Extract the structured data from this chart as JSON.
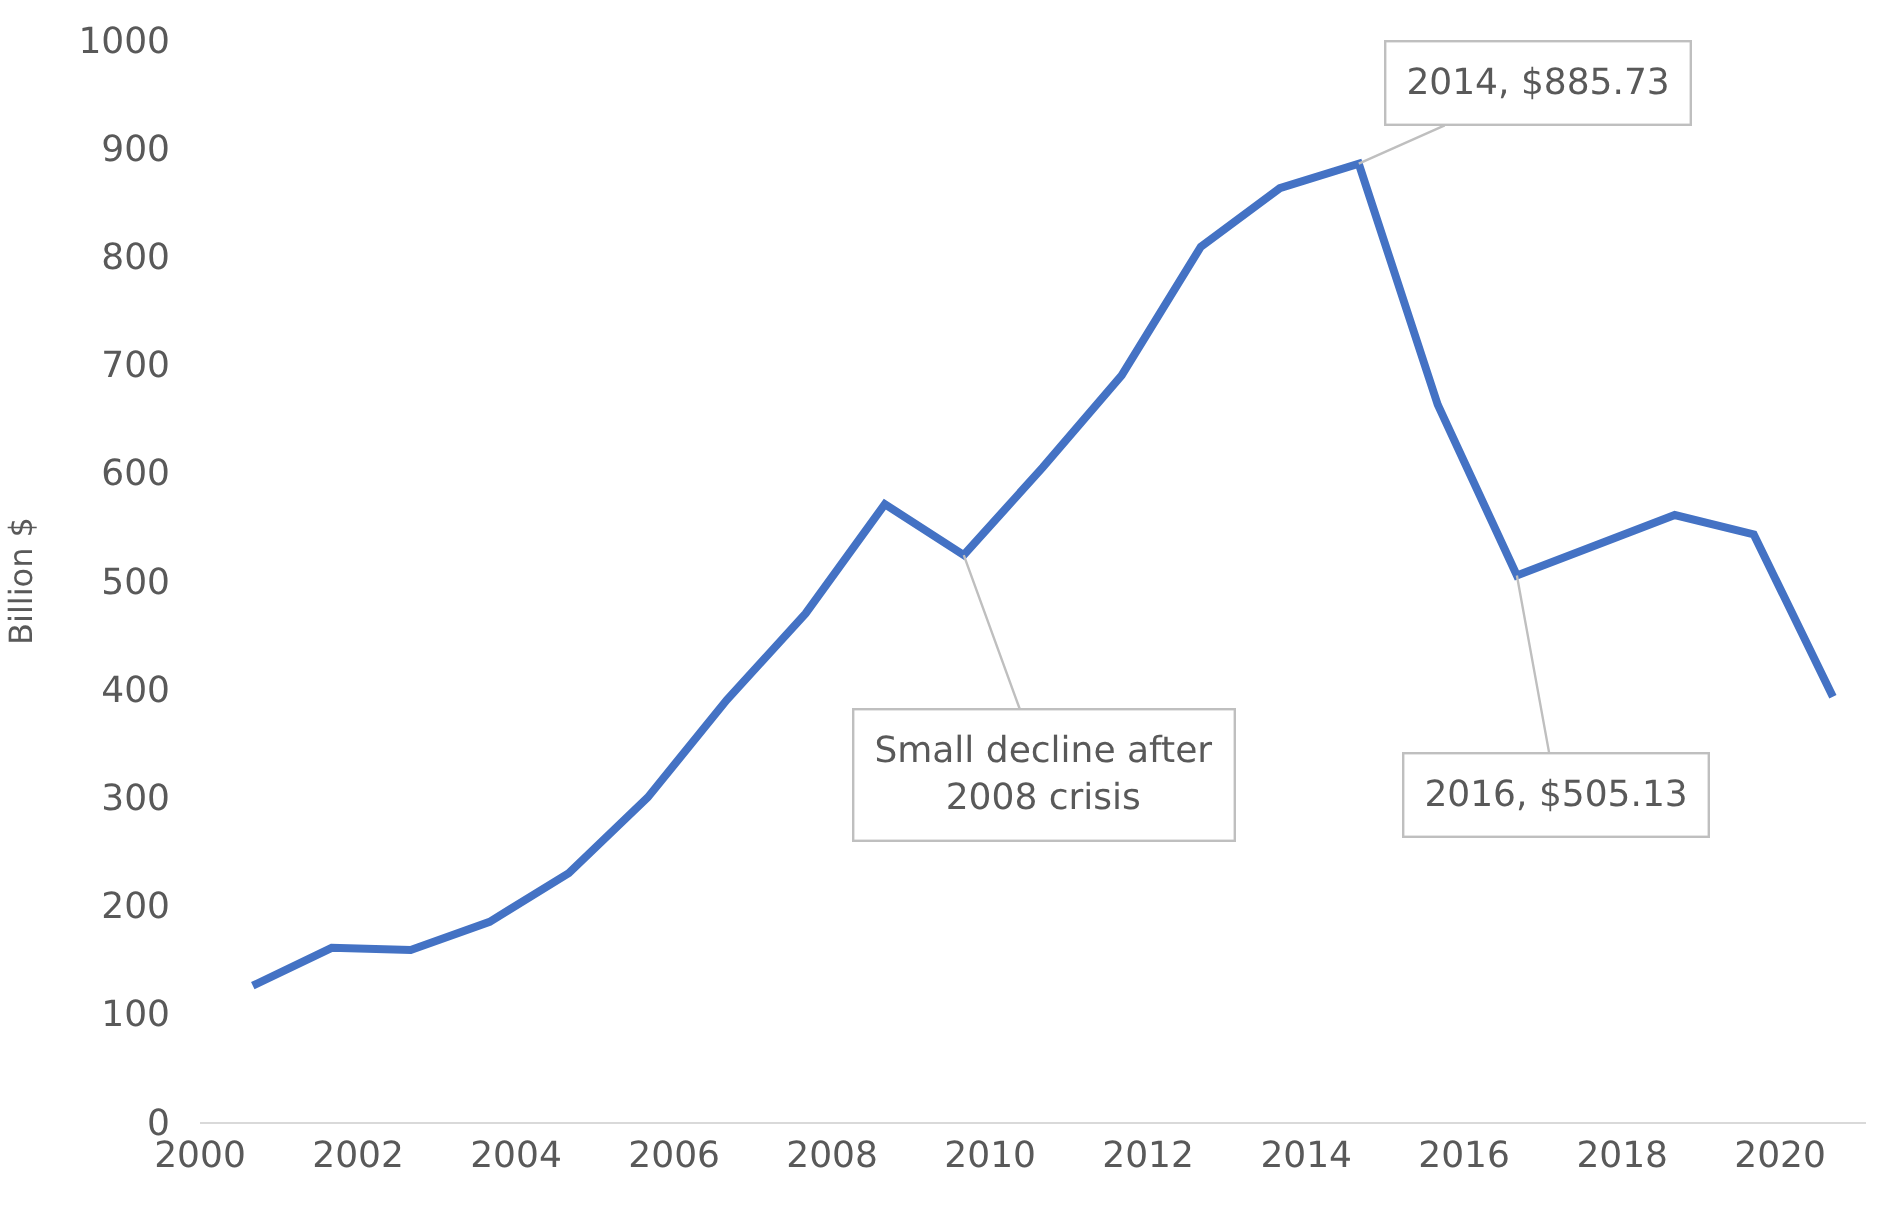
{
  "chart_data": {
    "type": "line",
    "ylabel": "Billion $",
    "x": [
      "2000-09",
      "2001-09",
      "2002-09",
      "2003-09",
      "2004-09",
      "2005-09",
      "2006-09",
      "2007-09",
      "2008-09",
      "2009-09",
      "2010-09",
      "2011-09",
      "2012-09",
      "2013-09",
      "2014-09",
      "2015-09",
      "2016-09",
      "2017-09",
      "2018-09",
      "2019-09",
      "2020-09"
    ],
    "series": [
      {
        "color": "#4472c4",
        "values": [
          126,
          161,
          159,
          185,
          230,
          300,
          390,
          470,
          571,
          524,
          605,
          690,
          809,
          863,
          885.73,
          663,
          505.13,
          533,
          561,
          543,
          393
        ]
      }
    ],
    "xlim": [
      "2000-01",
      "2021-02"
    ],
    "xticks": [
      "2000",
      "2002",
      "2004",
      "2006",
      "2008",
      "2010",
      "2012",
      "2014",
      "2016",
      "2018",
      "2020"
    ],
    "ylim": [
      0,
      1000
    ],
    "yticks": [
      0,
      100,
      200,
      300,
      400,
      500,
      600,
      700,
      800,
      900,
      1000
    ],
    "grid": false,
    "marker": "none",
    "line_style": "solid",
    "annotations": [
      {
        "text": "Small decline after\n2008 crisis",
        "x": "2009-09",
        "y": 524
      },
      {
        "text": "2014, $885.73",
        "x": "2014-09",
        "y": 885.73
      },
      {
        "text": "2016, $505.13",
        "x": "2016-09",
        "y": 505.13
      }
    ]
  }
}
